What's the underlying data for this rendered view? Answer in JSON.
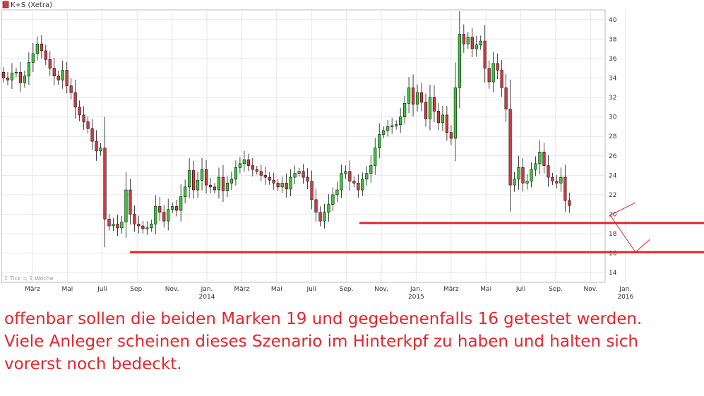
{
  "chart_data": {
    "type": "candlestick",
    "legend": {
      "label": "K+S (Xetra)",
      "color": "#d9363e",
      "placement": "top-left"
    },
    "footnote": "1 Tick = 1 Woche",
    "ylim": [
      13,
      41
    ],
    "y_ticks": [
      14,
      16,
      18,
      20,
      22,
      24,
      26,
      28,
      30,
      32,
      34,
      36,
      38,
      40
    ],
    "x_ticks": [
      {
        "label": "März",
        "year": ""
      },
      {
        "label": "Mai",
        "year": ""
      },
      {
        "label": "Juli",
        "year": ""
      },
      {
        "label": "Sep.",
        "year": ""
      },
      {
        "label": "Nov.",
        "year": ""
      },
      {
        "label": "Jan.",
        "year": "2014"
      },
      {
        "label": "März",
        "year": ""
      },
      {
        "label": "Mai",
        "year": ""
      },
      {
        "label": "Juli",
        "year": ""
      },
      {
        "label": "Sep.",
        "year": ""
      },
      {
        "label": "Nov.",
        "year": ""
      },
      {
        "label": "Jan.",
        "year": "2015"
      },
      {
        "label": "März",
        "year": ""
      },
      {
        "label": "Mai",
        "year": ""
      },
      {
        "label": "Juli",
        "year": ""
      },
      {
        "label": "Sep.",
        "year": ""
      },
      {
        "label": "Nov.",
        "year": ""
      },
      {
        "label": "Jan.",
        "year": "2016"
      }
    ],
    "grid": true,
    "colors": {
      "up": "#33cc33",
      "down": "#d9363e",
      "annotation": "#e3262c"
    },
    "close": [
      34.0,
      33.8,
      34.5,
      34.6,
      33.5,
      34.2,
      35.6,
      36.5,
      37.5,
      36.8,
      35.9,
      35.0,
      34.2,
      33.8,
      34.8,
      33.2,
      32.5,
      31.0,
      30.2,
      29.5,
      28.8,
      27.5,
      26.5,
      26.8,
      19.5,
      18.8,
      19.0,
      18.6,
      19.2,
      22.5,
      20.0,
      19.0,
      18.8,
      18.5,
      18.6,
      19.0,
      20.8,
      20.2,
      19.3,
      20.5,
      20.8,
      20.4,
      21.8,
      22.8,
      24.5,
      22.5,
      23.5,
      24.6,
      23.0,
      22.8,
      22.5,
      23.8,
      22.4,
      23.2,
      23.6,
      24.8,
      25.2,
      25.6,
      25.0,
      24.6,
      24.4,
      24.0,
      23.8,
      23.5,
      23.2,
      22.8,
      23.2,
      22.6,
      23.8,
      24.2,
      24.4,
      23.8,
      23.4,
      21.5,
      20.2,
      19.3,
      20.2,
      21.0,
      22.0,
      22.5,
      24.2,
      24.4,
      23.4,
      23.2,
      22.5,
      23.6,
      24.2,
      25.0,
      26.8,
      28.2,
      28.6,
      29.0,
      29.1,
      29.2,
      30.0,
      31.4,
      33.0,
      31.3,
      32.5,
      31.5,
      29.8,
      32.0,
      30.6,
      29.4,
      30.2,
      28.4,
      27.8,
      33.0,
      38.5,
      37.5,
      38.2,
      37.0,
      37.4,
      37.8,
      35.0,
      33.6,
      35.5,
      34.8,
      33.0,
      30.8,
      23.0,
      23.6,
      24.8,
      23.2,
      23.4,
      24.6,
      25.2,
      26.4,
      25.0,
      23.8,
      23.4,
      23.2,
      23.8,
      21.4,
      20.9
    ],
    "annotations": [
      {
        "type": "hline",
        "y": 19.1,
        "label": "19"
      },
      {
        "type": "hline",
        "y": 16.1,
        "label": "16"
      },
      {
        "type": "path",
        "points": [
          [
            21.2,
            20.0
          ],
          [
            19.1,
            18.1
          ],
          [
            16.1,
            17.4
          ]
        ]
      }
    ]
  },
  "caption": {
    "lines": [
      "offenbar sollen die beiden Marken 19 und gegebenenfalls 16 getestet werden.",
      "Viele Anleger scheinen dieses Szenario im Hinterkpf zu haben und halten sich",
      "vorerst noch bedeckt."
    ]
  }
}
